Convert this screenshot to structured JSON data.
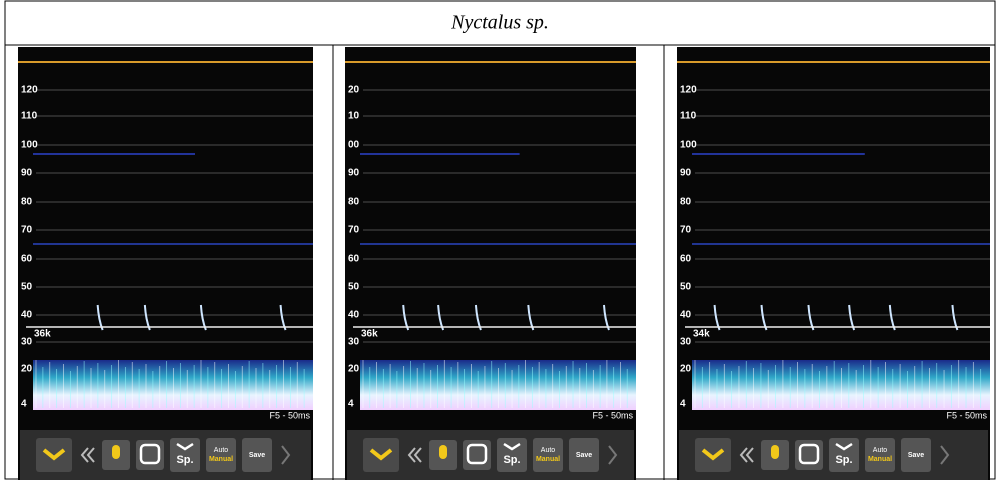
{
  "header": {
    "title": "Nyctalus sp."
  },
  "panels": [
    {
      "labels": [
        "120",
        "110",
        "100",
        "90",
        "80",
        "70",
        "60",
        "50",
        "40",
        "30",
        "20",
        "4"
      ],
      "marker": "36k",
      "scale": "F5 - 50ms",
      "toolbar": {
        "species": "Sp.",
        "auto": "Auto",
        "manual": "Manual",
        "save": "Save"
      }
    },
    {
      "labels": [
        "20",
        "10",
        "00",
        "90",
        "80",
        "70",
        "60",
        "50",
        "40",
        "30",
        "20",
        "4"
      ],
      "marker": "36k",
      "scale": "F5 - 50ms",
      "toolbar": {
        "species": "Sp.",
        "auto": "Auto",
        "manual": "Manual",
        "save": "Save"
      }
    },
    {
      "labels": [
        "120",
        "110",
        "100",
        "90",
        "80",
        "70",
        "60",
        "50",
        "40",
        "30",
        "20",
        "4"
      ],
      "marker": "34k",
      "scale": "F5 - 50ms",
      "toolbar": {
        "species": "Sp.",
        "auto": "Auto",
        "manual": "Manual",
        "save": "Save"
      }
    }
  ]
}
